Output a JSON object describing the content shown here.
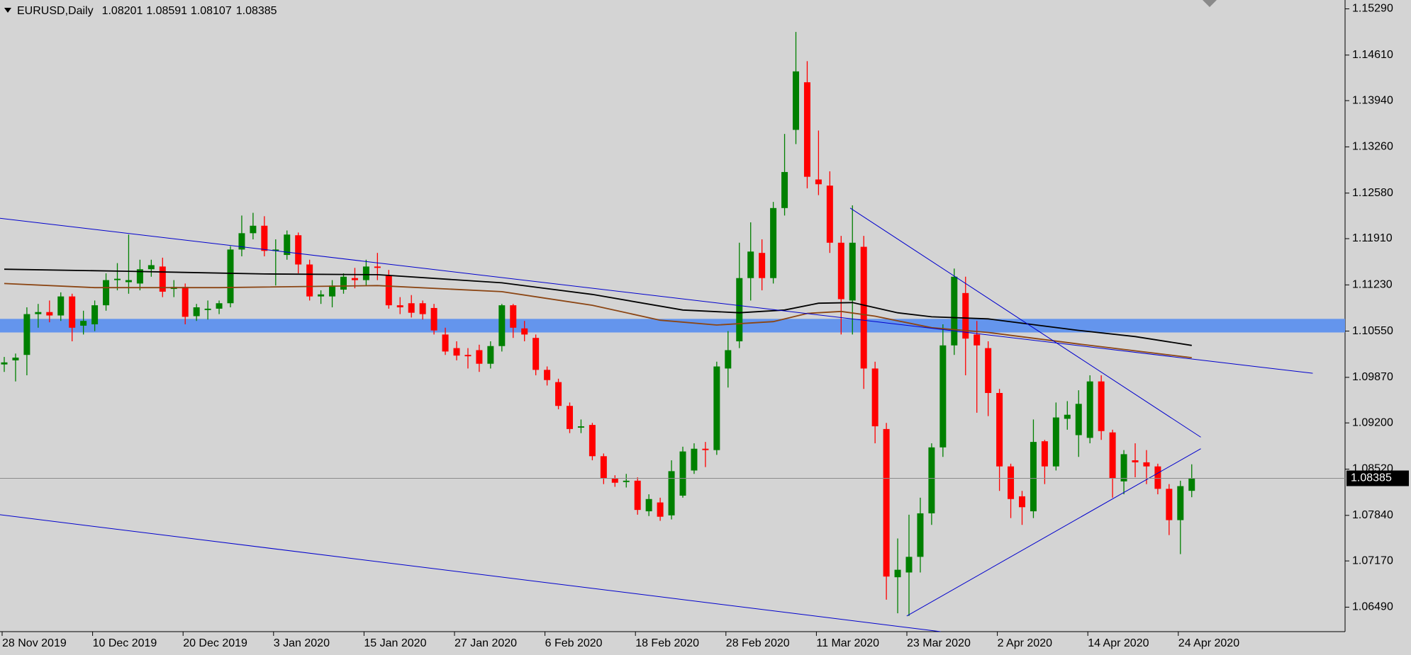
{
  "chart_data": {
    "type": "candlestick",
    "title": "EURUSD,Daily",
    "categories": [
      "28 Nov 2019",
      null,
      null,
      null,
      null,
      null,
      null,
      null,
      "10 Dec 2019",
      null,
      null,
      null,
      null,
      null,
      null,
      null,
      "20 Dec 2019",
      null,
      null,
      null,
      null,
      null,
      null,
      null,
      "3 Jan 2020",
      null,
      null,
      null,
      null,
      null,
      null,
      null,
      "15 Jan 2020",
      null,
      null,
      null,
      null,
      null,
      null,
      null,
      "27 Jan 2020",
      null,
      null,
      null,
      null,
      null,
      null,
      null,
      "6 Feb 2020",
      null,
      null,
      null,
      null,
      null,
      null,
      null,
      "18 Feb 2020",
      null,
      null,
      null,
      null,
      null,
      null,
      null,
      "28 Feb 2020",
      null,
      null,
      null,
      null,
      null,
      null,
      null,
      "11 Mar 2020",
      null,
      null,
      null,
      null,
      null,
      null,
      null,
      "23 Mar 2020",
      null,
      null,
      null,
      null,
      null,
      null,
      null,
      "2 Apr 2020",
      null,
      null,
      null,
      null,
      null,
      null,
      null,
      "14 Apr 2020",
      null,
      null,
      null,
      null,
      null,
      null,
      null,
      "24 Apr 2020",
      null
    ],
    "open": [
      1.1006,
      1.1012,
      1.102,
      1.108,
      1.1083,
      1.1078,
      1.1106,
      1.1063,
      1.1065,
      1.1093,
      1.113,
      1.1127,
      1.1125,
      1.1146,
      1.115,
      1.1117,
      1.112,
      1.1077,
      1.1086,
      1.1088,
      1.1096,
      1.1175,
      1.1199,
      1.121,
      1.1173,
      1.1167,
      1.1196,
      1.1153,
      1.1106,
      1.1106,
      1.1116,
      1.1133,
      1.113,
      1.115,
      1.1137,
      1.1093,
      1.1096,
      1.1096,
      1.1089,
      1.105,
      1.103,
      1.102,
      1.1027,
      1.1007,
      1.1033,
      1.1093,
      1.1059,
      1.1045,
      1.0998,
      1.098,
      1.0945,
      1.0913,
      1.0917,
      1.0871,
      1.0838,
      1.0833,
      1.0835,
      1.079,
      1.0803,
      1.0784,
      1.0813,
      1.085,
      1.0882,
      1.088,
      1.1,
      1.104,
      1.1133,
      1.117,
      1.1133,
      1.1236,
      1.1351,
      1.1421,
      1.1278,
      1.1269,
      1.1185,
      1.11,
      1.1179,
      1.1,
      1.0911,
      1.0693,
      1.07,
      1.0723,
      1.0787,
      1.0884,
      1.1034,
      1.1111,
      1.105,
      1.103,
      1.0964,
      1.0856,
      1.0812,
      1.079,
      1.0893,
      1.0856,
      1.0926,
      1.0902,
      1.0898,
      1.0981,
      1.0906,
      1.0834,
      1.0865,
      1.0862,
      1.0856,
      1.0823,
      1.0777,
      1.08201
    ],
    "high": [
      1.1017,
      1.1022,
      1.109,
      1.1095,
      1.11,
      1.1112,
      1.111,
      1.1085,
      1.11,
      1.114,
      1.1155,
      1.1197,
      1.116,
      1.116,
      1.1163,
      1.113,
      1.1125,
      1.1095,
      1.11,
      1.11,
      1.118,
      1.1225,
      1.1229,
      1.1224,
      1.119,
      1.1203,
      1.12,
      1.116,
      1.1115,
      1.113,
      1.114,
      1.1148,
      1.116,
      1.117,
      1.1145,
      1.1105,
      1.1108,
      1.11,
      1.1095,
      1.106,
      1.104,
      1.103,
      1.1035,
      1.104,
      1.1095,
      1.1095,
      1.107,
      1.105,
      1.1003,
      1.0985,
      1.095,
      1.0925,
      1.092,
      1.0875,
      1.0843,
      1.0845,
      1.084,
      1.0815,
      1.081,
      1.0865,
      1.0885,
      1.089,
      1.0892,
      1.101,
      1.1055,
      1.1185,
      1.1215,
      1.119,
      1.1245,
      1.1345,
      1.1495,
      1.1452,
      1.135,
      1.129,
      1.1195,
      1.124,
      1.1195,
      1.101,
      1.092,
      1.075,
      1.0785,
      1.081,
      1.089,
      1.1065,
      1.1147,
      1.1135,
      1.107,
      1.104,
      1.097,
      1.086,
      1.082,
      1.0925,
      1.0895,
      1.095,
      1.0952,
      1.0968,
      1.099,
      1.099,
      1.091,
      1.088,
      1.089,
      1.088,
      1.086,
      1.083,
      1.0835,
      1.08591
    ],
    "low": [
      1.0995,
      1.0981,
      1.099,
      1.106,
      1.1068,
      1.107,
      1.104,
      1.105,
      1.1055,
      1.1085,
      1.1115,
      1.111,
      1.1115,
      1.1135,
      1.1105,
      1.1105,
      1.1065,
      1.107,
      1.1072,
      1.108,
      1.109,
      1.1165,
      1.119,
      1.1165,
      1.1122,
      1.116,
      1.114,
      1.11,
      1.1095,
      1.109,
      1.111,
      1.1118,
      1.1122,
      1.113,
      1.1088,
      1.108,
      1.1075,
      1.1072,
      1.105,
      1.102,
      1.1012,
      1.1,
      1.0995,
      1.1,
      1.1025,
      1.1045,
      1.104,
      1.099,
      1.0975,
      1.094,
      1.0905,
      1.0905,
      1.0865,
      1.083,
      1.0826,
      1.0825,
      1.0785,
      1.0783,
      1.0776,
      1.0778,
      1.081,
      1.0845,
      1.0855,
      1.0873,
      1.0972,
      1.103,
      1.11,
      1.1115,
      1.1125,
      1.1225,
      1.133,
      1.1265,
      1.1255,
      1.117,
      1.105,
      1.105,
      1.097,
      1.089,
      1.066,
      1.064,
      1.0636,
      1.07,
      1.077,
      1.087,
      1.102,
      1.099,
      1.0935,
      1.093,
      1.082,
      1.078,
      1.077,
      1.078,
      1.083,
      1.085,
      1.091,
      1.087,
      1.089,
      1.0895,
      1.081,
      1.0815,
      1.084,
      1.083,
      1.0815,
      1.0755,
      1.0727,
      1.08107
    ],
    "close": [
      1.1009,
      1.1016,
      1.108,
      1.1083,
      1.1078,
      1.1106,
      1.106,
      1.107,
      1.1093,
      1.113,
      1.1132,
      1.113,
      1.1146,
      1.1152,
      1.1113,
      1.112,
      1.1076,
      1.109,
      1.1088,
      1.1096,
      1.1175,
      1.1199,
      1.121,
      1.1173,
      1.1175,
      1.1197,
      1.1153,
      1.1106,
      1.1109,
      1.1122,
      1.1135,
      1.113,
      1.115,
      1.1148,
      1.1093,
      1.109,
      1.1082,
      1.108,
      1.1056,
      1.1025,
      1.1019,
      1.1018,
      1.1007,
      1.1033,
      1.1093,
      1.106,
      1.105,
      1.0998,
      1.0983,
      1.0945,
      1.0911,
      1.0915,
      1.0871,
      1.0839,
      1.0832,
      1.0835,
      1.0792,
      1.0808,
      1.0782,
      1.0849,
      1.0878,
      1.0882,
      1.088,
      1.1003,
      1.1027,
      1.1133,
      1.1172,
      1.1133,
      1.1236,
      1.1289,
      1.1437,
      1.1282,
      1.1271,
      1.1185,
      1.1102,
      1.1185,
      1.1,
      1.0915,
      1.0694,
      1.0704,
      1.0723,
      1.0787,
      1.0884,
      1.1034,
      1.1135,
      1.1044,
      1.1034,
      1.0964,
      1.0856,
      1.0808,
      1.0796,
      1.0892,
      1.0856,
      1.0928,
      1.0932,
      1.0948,
      1.0981,
      1.0908,
      1.0838,
      1.0874,
      1.0862,
      1.0856,
      1.0823,
      1.0777,
      1.0827,
      1.08385
    ],
    "up_color": "#008000",
    "down_color": "#ff0000",
    "ylim": [
      1.0613,
      1.1542
    ],
    "yticks": [
      {
        "value": 1.1529,
        "label": "1.15290"
      },
      {
        "value": 1.1461,
        "label": "1.14610"
      },
      {
        "value": 1.1394,
        "label": "1.13940"
      },
      {
        "value": 1.1326,
        "label": "1.13260"
      },
      {
        "value": 1.1258,
        "label": "1.12580"
      },
      {
        "value": 1.1191,
        "label": "1.11910"
      },
      {
        "value": 1.1123,
        "label": "1.11230"
      },
      {
        "value": 1.1055,
        "label": "1.10550"
      },
      {
        "value": 1.0987,
        "label": "1.09870"
      },
      {
        "value": 1.092,
        "label": "1.09200"
      },
      {
        "value": 1.0852,
        "label": "1.08520"
      },
      {
        "value": 1.0784,
        "label": "1.07840"
      },
      {
        "value": 1.0717,
        "label": "1.07170"
      },
      {
        "value": 1.0649,
        "label": "1.06490"
      }
    ],
    "band": {
      "color": "#6495ed",
      "values": [
        1.1053,
        1.1073
      ]
    },
    "overlays": [
      {
        "color": "#000000",
        "x": [
          0,
          11,
          23,
          33,
          44,
          52,
          60,
          65,
          69,
          72,
          75,
          79,
          82,
          87,
          95,
          100,
          105
        ],
        "values": [
          1.1146,
          1.1143,
          1.1139,
          1.1138,
          1.1126,
          1.1109,
          1.1086,
          1.1082,
          1.1086,
          1.1096,
          1.1097,
          1.1082,
          1.1076,
          1.1073,
          1.1056,
          1.1047,
          1.1034
        ]
      },
      {
        "color": "#8b4513",
        "x": [
          0,
          8,
          19,
          33,
          44,
          52,
          58,
          63,
          68,
          71,
          74,
          77,
          82,
          87,
          95,
          105
        ],
        "values": [
          1.1125,
          1.1119,
          1.1119,
          1.1122,
          1.1113,
          1.1093,
          1.1071,
          1.1064,
          1.1069,
          1.1081,
          1.1084,
          1.1077,
          1.106,
          1.1053,
          1.1036,
          1.1016
        ]
      }
    ],
    "trendlines": [
      {
        "color": "#0000cd",
        "x": [
          -0.4,
          115.7
        ],
        "values": [
          1.1221,
          1.0993
        ]
      },
      {
        "color": "#0000cd",
        "x": [
          -0.4,
          82.8
        ],
        "values": [
          1.0785,
          1.0613
        ]
      },
      {
        "color": "#0000cd",
        "x": [
          74.8,
          105.8
        ],
        "values": [
          1.1236,
          1.0899
        ]
      },
      {
        "color": "#0000cd",
        "x": [
          79.8,
          105.8
        ],
        "values": [
          1.0636,
          1.0882
        ]
      }
    ]
  }
}
